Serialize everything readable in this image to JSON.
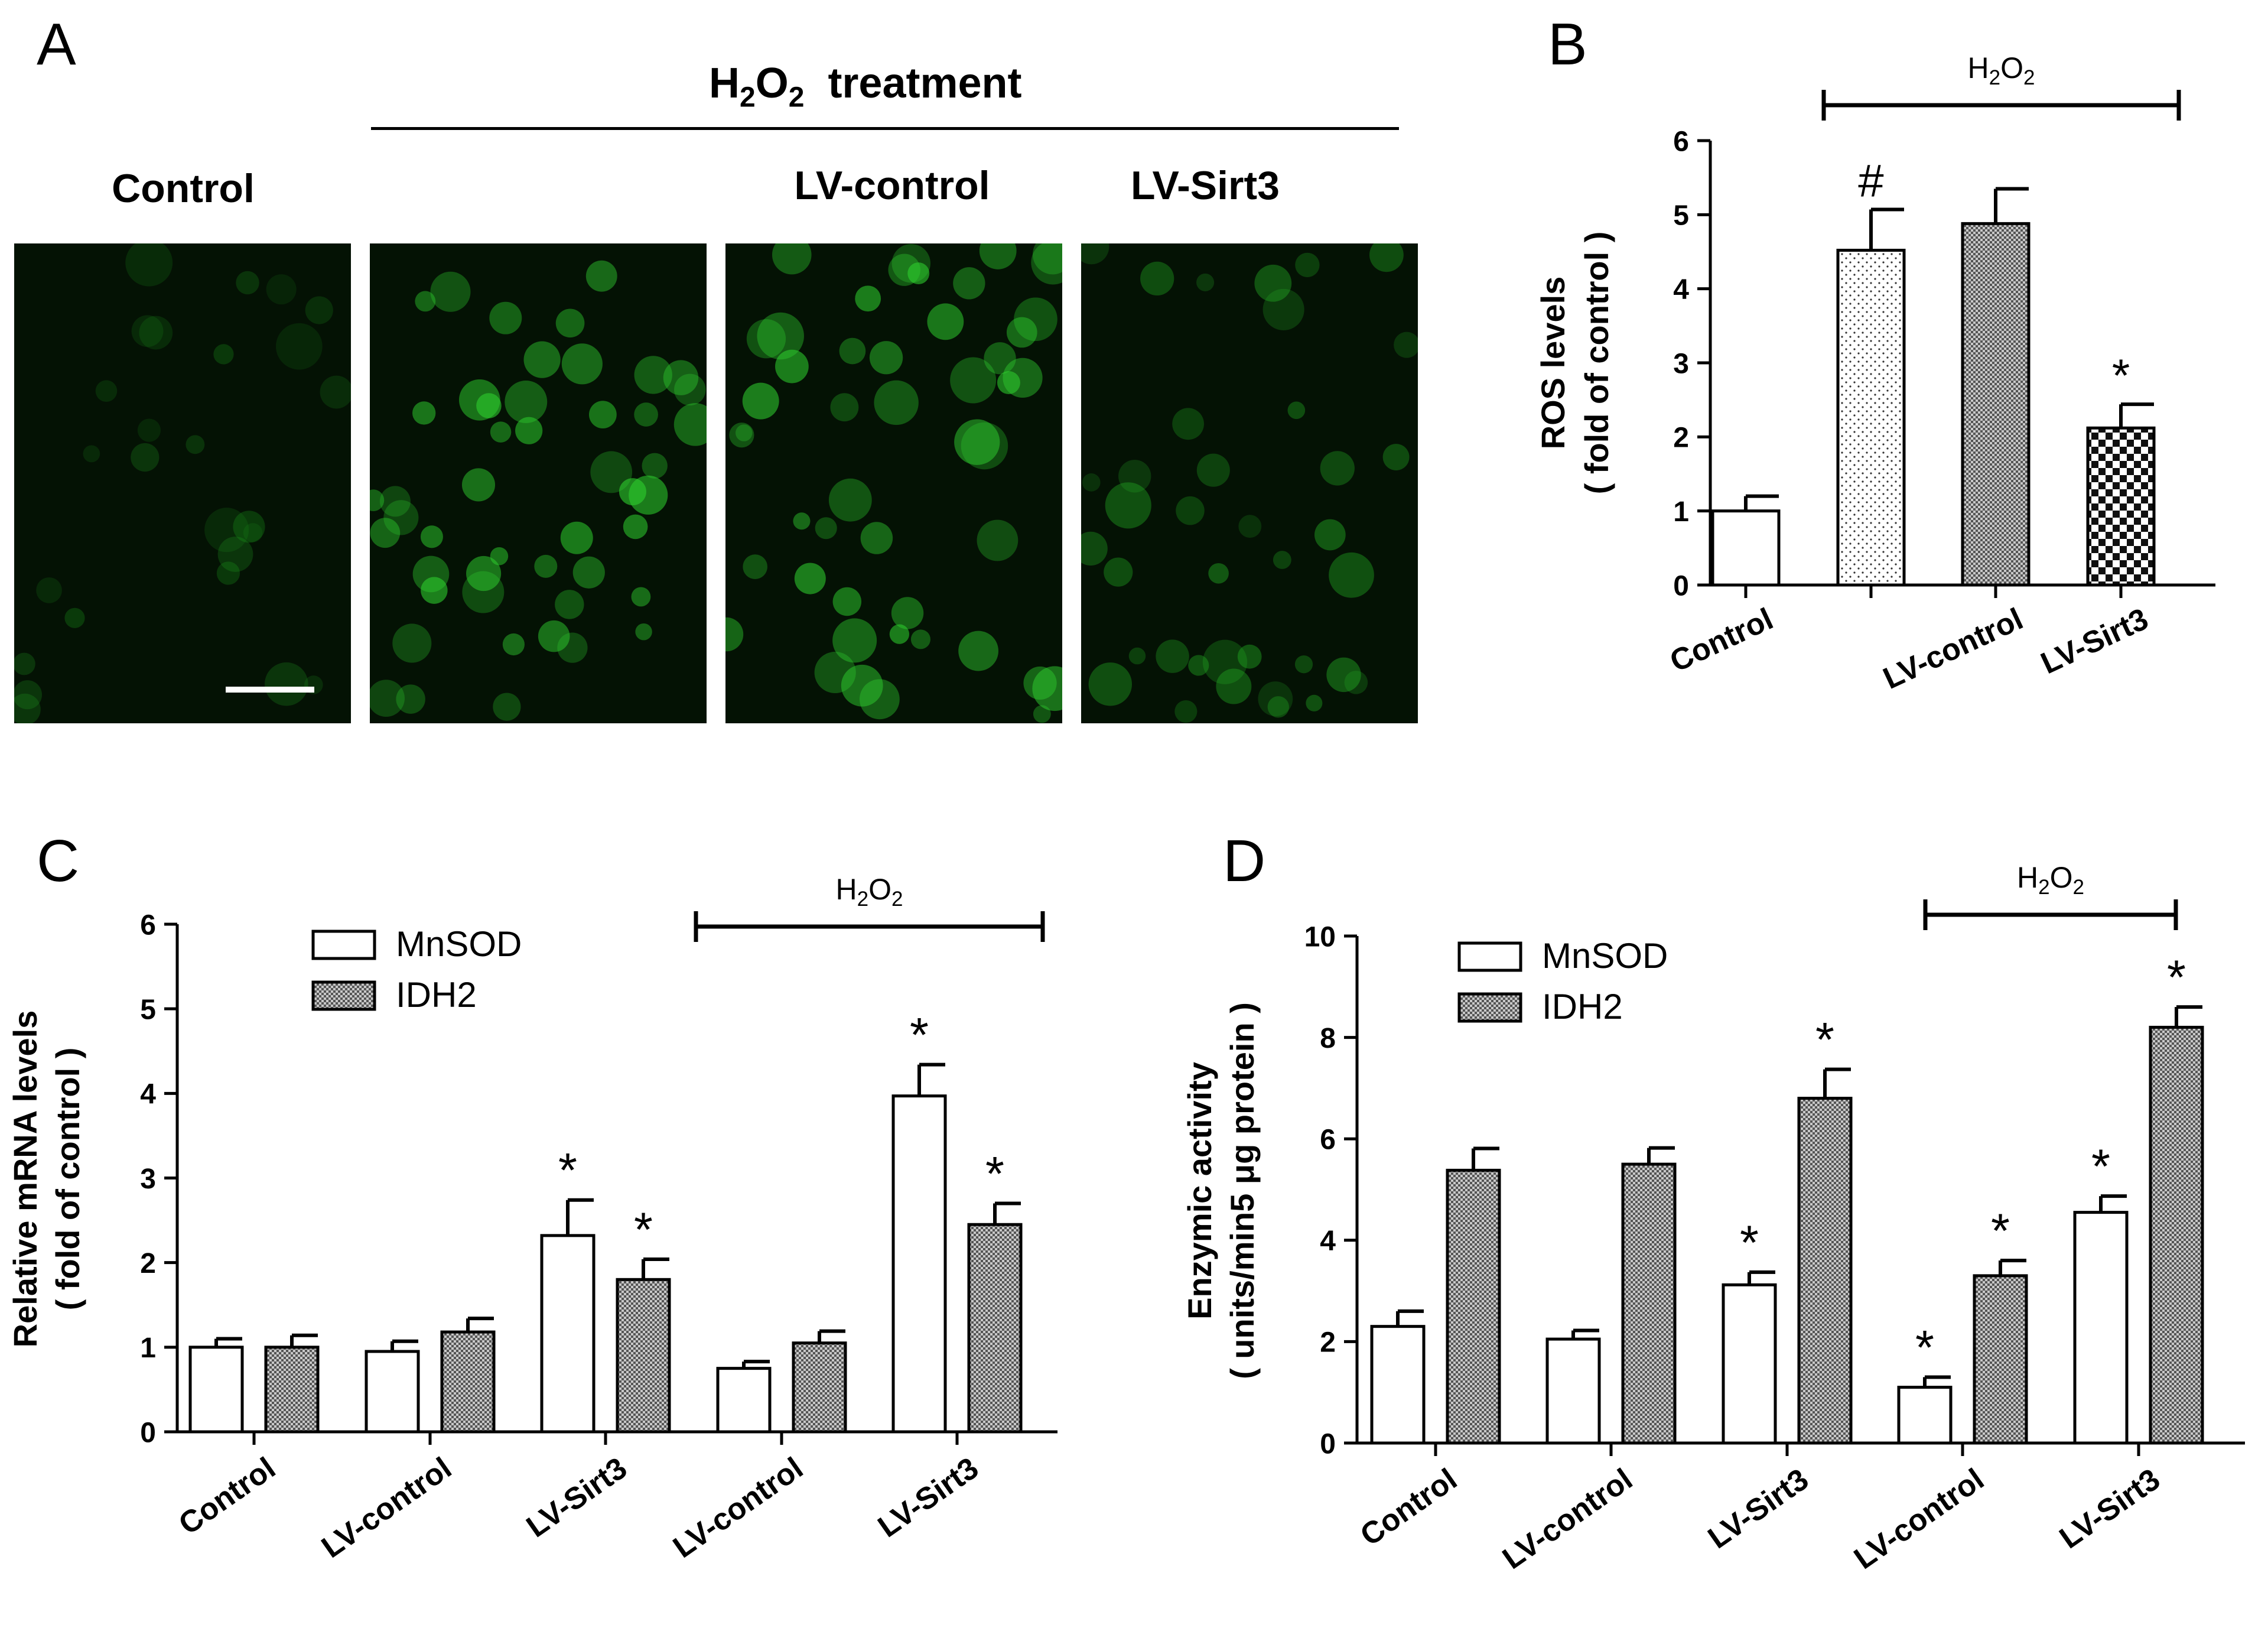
{
  "panel_a": {
    "letter": "A",
    "treatment_label": "H2O2 treatment",
    "treatment_text": "treatment",
    "columns": [
      "Control",
      "LV-control",
      "LV-Sirt3"
    ],
    "images": [
      {
        "group": "Control",
        "fluorescence": "dim",
        "color": "#1ea01e"
      },
      {
        "group": "H2O2",
        "fluorescence": "bright",
        "color": "#2fd02f"
      },
      {
        "group": "LV-control",
        "fluorescence": "bright",
        "color": "#2fd02f"
      },
      {
        "group": "LV-Sirt3",
        "fluorescence": "moderate",
        "color": "#24b024"
      }
    ]
  },
  "chart_data": [
    {
      "panel": "B",
      "type": "bar",
      "ylabel": [
        "ROS levels",
        "( fold of control )"
      ],
      "ylim": [
        0,
        6
      ],
      "yticks": [
        0,
        1,
        2,
        3,
        4,
        5,
        6
      ],
      "categories": [
        "Control",
        "",
        "LV-control",
        "LV-Sirt3"
      ],
      "values": [
        1.0,
        4.52,
        4.88,
        2.12
      ],
      "errors": [
        0.2,
        0.55,
        0.47,
        0.32
      ],
      "patterns": [
        "white",
        "dots",
        "dense",
        "checker"
      ],
      "annotations": [
        "",
        "#",
        "",
        "*"
      ],
      "bracket": {
        "label": "H2O2",
        "from": 1,
        "to": 3
      }
    },
    {
      "panel": "C",
      "type": "bar",
      "ylabel": [
        "Relative mRNA levels",
        "( fold of control )"
      ],
      "ylim": [
        0,
        6
      ],
      "yticks": [
        0,
        1,
        2,
        3,
        4,
        5,
        6
      ],
      "categories": [
        "Control",
        "LV-control",
        "LV-Sirt3",
        "LV-control",
        "LV-Sirt3"
      ],
      "series": [
        {
          "name": "MnSOD",
          "values": [
            1.0,
            0.95,
            2.32,
            0.75,
            3.97
          ],
          "errors": [
            0.1,
            0.12,
            0.42,
            0.08,
            0.37
          ],
          "annotations": [
            "",
            "",
            "*",
            "",
            "*"
          ]
        },
        {
          "name": "IDH2",
          "values": [
            1.0,
            1.18,
            1.8,
            1.05,
            2.45
          ],
          "errors": [
            0.14,
            0.16,
            0.24,
            0.14,
            0.25
          ],
          "annotations": [
            "",
            "",
            "*",
            "",
            "*"
          ]
        }
      ],
      "legend": "top-left",
      "bracket": {
        "label": "H2O2",
        "from": 3,
        "to": 4
      }
    },
    {
      "panel": "D",
      "type": "bar",
      "ylabel": [
        "Enzymic activity",
        "( units/min5 μg protein )"
      ],
      "ylim": [
        0,
        10
      ],
      "yticks": [
        0,
        2,
        4,
        6,
        8,
        10
      ],
      "categories": [
        "Control",
        "LV-control",
        "LV-Sirt3",
        "LV-control",
        "LV-Sirt3"
      ],
      "series": [
        {
          "name": "MnSOD",
          "values": [
            2.3,
            2.05,
            3.12,
            1.1,
            4.55
          ],
          "errors": [
            0.3,
            0.17,
            0.25,
            0.2,
            0.32
          ],
          "annotations": [
            "",
            "",
            "*",
            "*",
            "*"
          ]
        },
        {
          "name": "IDH2",
          "values": [
            5.38,
            5.5,
            6.8,
            3.3,
            8.2
          ],
          "errors": [
            0.43,
            0.32,
            0.57,
            0.3,
            0.4
          ],
          "annotations": [
            "",
            "",
            "*",
            "*",
            "*"
          ]
        }
      ],
      "legend": "top-left",
      "bracket": {
        "label": "H2O2",
        "from": 3,
        "to": 4
      }
    }
  ]
}
